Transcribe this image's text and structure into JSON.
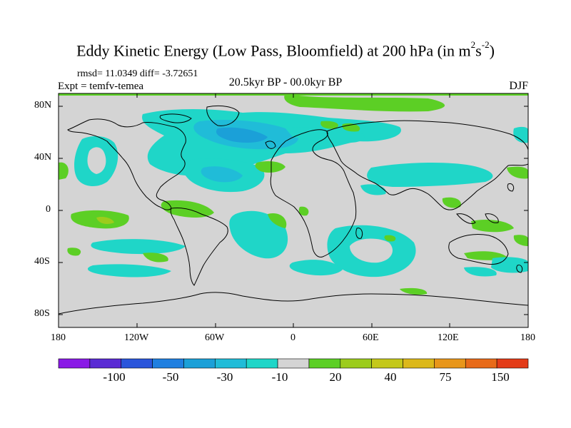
{
  "title_main": "Eddy Kinetic Energy (Low Pass, Bloomfield) at 200 hPa (in m",
  "title_sup1": "2",
  "title_mid": "s",
  "title_sup2": "-2",
  "title_end": ")",
  "stats_text": "rmsd= 11.0349 diff= -3.72651",
  "expt_text": "Expt = temfv-temea",
  "period_text": "20.5kyr BP - 00.0kyr BP",
  "season_text": "DJF",
  "lat_ticks": [
    "80N",
    "40N",
    "0",
    "40S",
    "80S"
  ],
  "lon_ticks": [
    "180",
    "120W",
    "60W",
    "0",
    "60E",
    "120E",
    "180"
  ],
  "colorbar": {
    "colors": [
      "#8a1ae6",
      "#5a2bd4",
      "#2a55db",
      "#1f7fe0",
      "#1ba0d8",
      "#20bcd8",
      "#1fd6c8",
      "#d4d4d4",
      "#5ccf25",
      "#9ccc1c",
      "#c4c81a",
      "#dcb81a",
      "#e8961a",
      "#e86a19",
      "#e33b18"
    ],
    "labels": [
      "-100",
      "-50",
      "-30",
      "-10",
      "20",
      "40",
      "75",
      "150"
    ]
  },
  "colors": {
    "land_bg": "#d4d4d4",
    "coast": "#000000"
  }
}
